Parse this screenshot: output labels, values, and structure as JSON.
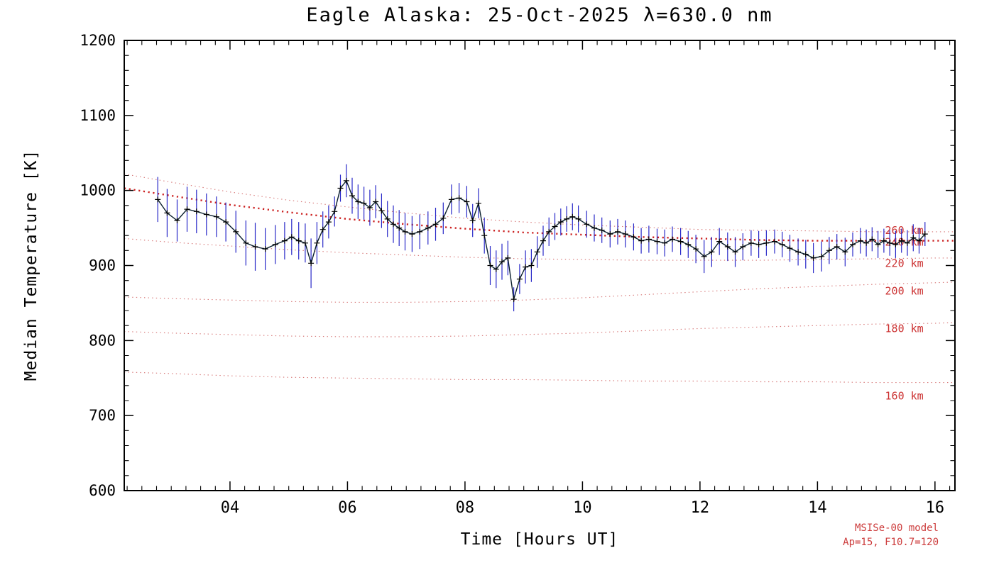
{
  "chart_data": {
    "type": "line",
    "title": "Eagle Alaska: 25-Oct-2025 λ=630.0 nm",
    "xlabel": "Time [Hours UT]",
    "ylabel": "Median Temperature [K]",
    "xlim": [
      2.2,
      16.34
    ],
    "ylim": [
      600,
      1200
    ],
    "grid": false,
    "x_ticks": {
      "values": [
        4,
        6,
        8,
        10,
        12,
        14,
        16
      ],
      "labels": [
        "04",
        "06",
        "08",
        "10",
        "12",
        "14",
        "16"
      ],
      "minor_step": 0.25
    },
    "y_ticks": {
      "values": [
        600,
        700,
        800,
        900,
        1000,
        1100,
        1200
      ],
      "labels": [
        "600",
        "700",
        "800",
        "900",
        "1000",
        "1100",
        "1200"
      ],
      "minor_step": 20
    },
    "series": {
      "name": "median temperature with error bars",
      "marker": "plus",
      "line_color": "#0a1f2e",
      "marker_color": "#000000",
      "error_color": "#2929c8",
      "x": [
        2.77,
        2.93,
        3.1,
        3.27,
        3.43,
        3.6,
        3.77,
        3.93,
        4.1,
        4.27,
        4.43,
        4.6,
        4.77,
        4.93,
        5.05,
        5.17,
        5.28,
        5.38,
        5.48,
        5.58,
        5.68,
        5.78,
        5.88,
        5.98,
        6.08,
        6.18,
        6.28,
        6.38,
        6.48,
        6.58,
        6.68,
        6.78,
        6.88,
        6.98,
        7.1,
        7.23,
        7.37,
        7.5,
        7.63,
        7.77,
        7.9,
        8.03,
        8.13,
        8.23,
        8.33,
        8.43,
        8.53,
        8.63,
        8.73,
        8.83,
        8.93,
        9.03,
        9.13,
        9.23,
        9.33,
        9.43,
        9.53,
        9.63,
        9.73,
        9.83,
        9.93,
        10.07,
        10.2,
        10.33,
        10.47,
        10.6,
        10.73,
        10.87,
        11.0,
        11.13,
        11.27,
        11.4,
        11.53,
        11.67,
        11.8,
        11.93,
        12.07,
        12.2,
        12.33,
        12.47,
        12.6,
        12.73,
        12.87,
        13.0,
        13.13,
        13.27,
        13.4,
        13.53,
        13.67,
        13.8,
        13.93,
        14.07,
        14.2,
        14.33,
        14.47,
        14.6,
        14.73,
        14.83,
        14.93,
        15.03,
        15.13,
        15.23,
        15.33,
        15.43,
        15.53,
        15.63,
        15.73,
        15.83
      ],
      "y": [
        988,
        970,
        960,
        975,
        972,
        968,
        965,
        958,
        945,
        930,
        925,
        922,
        928,
        933,
        938,
        933,
        930,
        903,
        930,
        948,
        958,
        972,
        1003,
        1013,
        993,
        985,
        983,
        977,
        985,
        973,
        962,
        955,
        950,
        945,
        942,
        945,
        950,
        955,
        963,
        988,
        990,
        985,
        960,
        983,
        940,
        900,
        895,
        905,
        910,
        855,
        882,
        898,
        900,
        918,
        933,
        945,
        952,
        958,
        962,
        965,
        962,
        955,
        950,
        947,
        942,
        945,
        942,
        938,
        933,
        935,
        932,
        930,
        935,
        932,
        928,
        922,
        912,
        918,
        932,
        925,
        918,
        925,
        930,
        928,
        930,
        932,
        928,
        923,
        918,
        915,
        910,
        912,
        920,
        925,
        918,
        928,
        933,
        930,
        935,
        928,
        933,
        930,
        928,
        933,
        930,
        937,
        933,
        942
      ],
      "yerr": [
        30,
        32,
        28,
        30,
        29,
        28,
        27,
        26,
        28,
        30,
        32,
        28,
        26,
        25,
        24,
        25,
        26,
        33,
        28,
        24,
        22,
        20,
        18,
        22,
        24,
        23,
        22,
        24,
        22,
        23,
        24,
        25,
        24,
        25,
        24,
        23,
        22,
        22,
        21,
        20,
        20,
        21,
        22,
        20,
        24,
        26,
        25,
        24,
        23,
        16,
        20,
        22,
        22,
        21,
        20,
        19,
        18,
        18,
        17,
        18,
        18,
        18,
        18,
        17,
        18,
        17,
        18,
        18,
        17,
        18,
        17,
        18,
        17,
        18,
        18,
        19,
        22,
        20,
        18,
        19,
        20,
        18,
        17,
        18,
        17,
        16,
        17,
        18,
        18,
        19,
        20,
        20,
        18,
        17,
        19,
        16,
        17,
        18,
        16,
        18,
        16,
        17,
        18,
        16,
        17,
        18,
        17,
        16
      ]
    },
    "model_curves": {
      "name": "MSISe-00 model temperature vs altitude",
      "color_thin": "#d06060",
      "color_emphasis": "#cc2222",
      "label_color": "#cc3333",
      "label_x": 15.15,
      "x": [
        2.2,
        3,
        4,
        5,
        6,
        7,
        8,
        9,
        10,
        11,
        12,
        13,
        14,
        15,
        16,
        16.34
      ],
      "curves": [
        {
          "label": "260 km",
          "emphasis": false,
          "label_T": 947,
          "T": [
            1022,
            1011,
            998,
            987,
            978,
            970,
            963,
            958,
            954,
            951,
            948,
            947,
            946,
            945,
            945,
            945
          ]
        },
        {
          "label": "240 km",
          "emphasis": true,
          "label_T": 931,
          "T": [
            1003,
            993,
            981,
            971,
            962,
            955,
            949,
            944,
            941,
            938,
            936,
            934,
            933,
            933,
            933,
            933
          ]
        },
        {
          "label": "220 km",
          "emphasis": false,
          "label_T": 903,
          "T": [
            936,
            931,
            926,
            921,
            917,
            914,
            911,
            909,
            908,
            907,
            907,
            907,
            908,
            909,
            910,
            910
          ]
        },
        {
          "label": "200 km",
          "emphasis": false,
          "label_T": 866,
          "T": [
            858,
            856,
            854,
            852,
            851,
            851,
            852,
            854,
            857,
            861,
            865,
            869,
            872,
            875,
            877,
            878
          ]
        },
        {
          "label": "180 km",
          "emphasis": false,
          "label_T": 816,
          "T": [
            812,
            810,
            808,
            806,
            805,
            805,
            806,
            808,
            810,
            813,
            816,
            818,
            820,
            822,
            823,
            824
          ]
        },
        {
          "label": "160 km",
          "emphasis": false,
          "label_T": 726,
          "T": [
            758,
            756,
            753,
            751,
            750,
            749,
            748,
            748,
            747,
            746,
            746,
            745,
            745,
            744,
            744,
            744
          ]
        }
      ]
    },
    "annotations": {
      "line1": "MSISe-00 model",
      "line2": "Ap=15, F10.7=120",
      "color": "#cc3b3b"
    },
    "frame_color": "#000000",
    "background": "#ffffff",
    "legend": "none"
  }
}
